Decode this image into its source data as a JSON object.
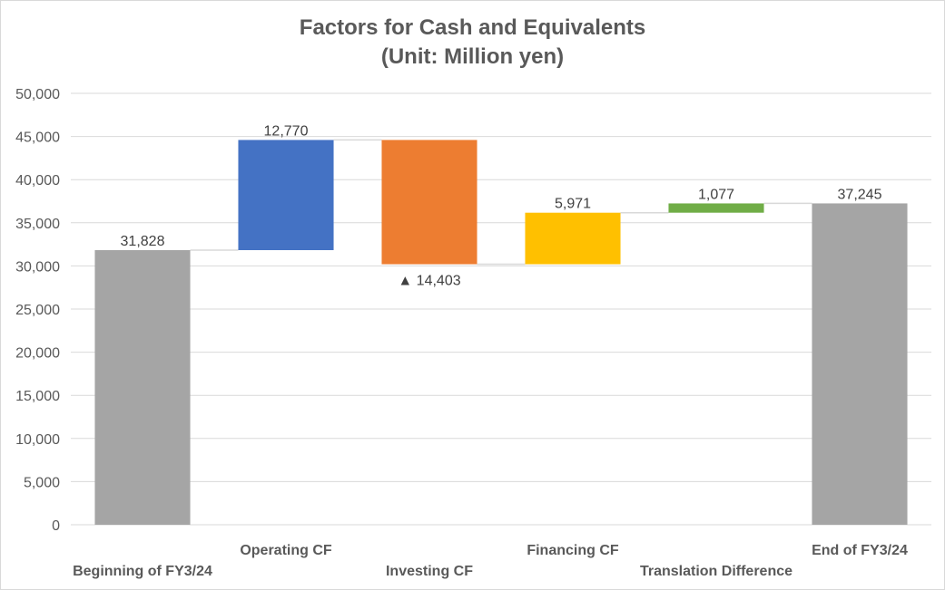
{
  "chart_data": {
    "type": "bar",
    "subtype": "waterfall",
    "title_lines": [
      "Factors for Cash and Equivalents",
      "(Unit: Million yen)"
    ],
    "xlabel": "",
    "ylabel": "",
    "ylim": [
      0,
      50000
    ],
    "yticks": [
      0,
      5000,
      10000,
      15000,
      20000,
      25000,
      30000,
      35000,
      40000,
      45000,
      50000
    ],
    "ytick_labels": [
      "0",
      "5,000",
      "10,000",
      "15,000",
      "20,000",
      "25,000",
      "30,000",
      "35,000",
      "40,000",
      "45,000",
      "50,000"
    ],
    "grid": true,
    "legend": "none",
    "negative_marker": "▲",
    "bars": [
      {
        "category": "Beginning of FY3/24",
        "kind": "total",
        "start": 0,
        "end": 31828,
        "label": "31,828",
        "color": "#a5a5a5"
      },
      {
        "category": "Operating CF",
        "kind": "increase",
        "start": 31828,
        "end": 44598,
        "label": "12,770",
        "color": "#4472c4"
      },
      {
        "category": "Investing CF",
        "kind": "decrease",
        "start": 44598,
        "end": 30195,
        "label": "14,403",
        "color": "#ed7d31"
      },
      {
        "category": "Financing CF",
        "kind": "increase",
        "start": 30195,
        "end": 36166,
        "label": "5,971",
        "color": "#ffc000"
      },
      {
        "category": "Translation Difference",
        "kind": "increase",
        "start": 36166,
        "end": 37243,
        "label": "1,077",
        "color": "#70ad47"
      },
      {
        "category": "End of FY3/24",
        "kind": "total",
        "start": 0,
        "end": 37245,
        "label": "37,245",
        "color": "#a5a5a5"
      }
    ]
  }
}
